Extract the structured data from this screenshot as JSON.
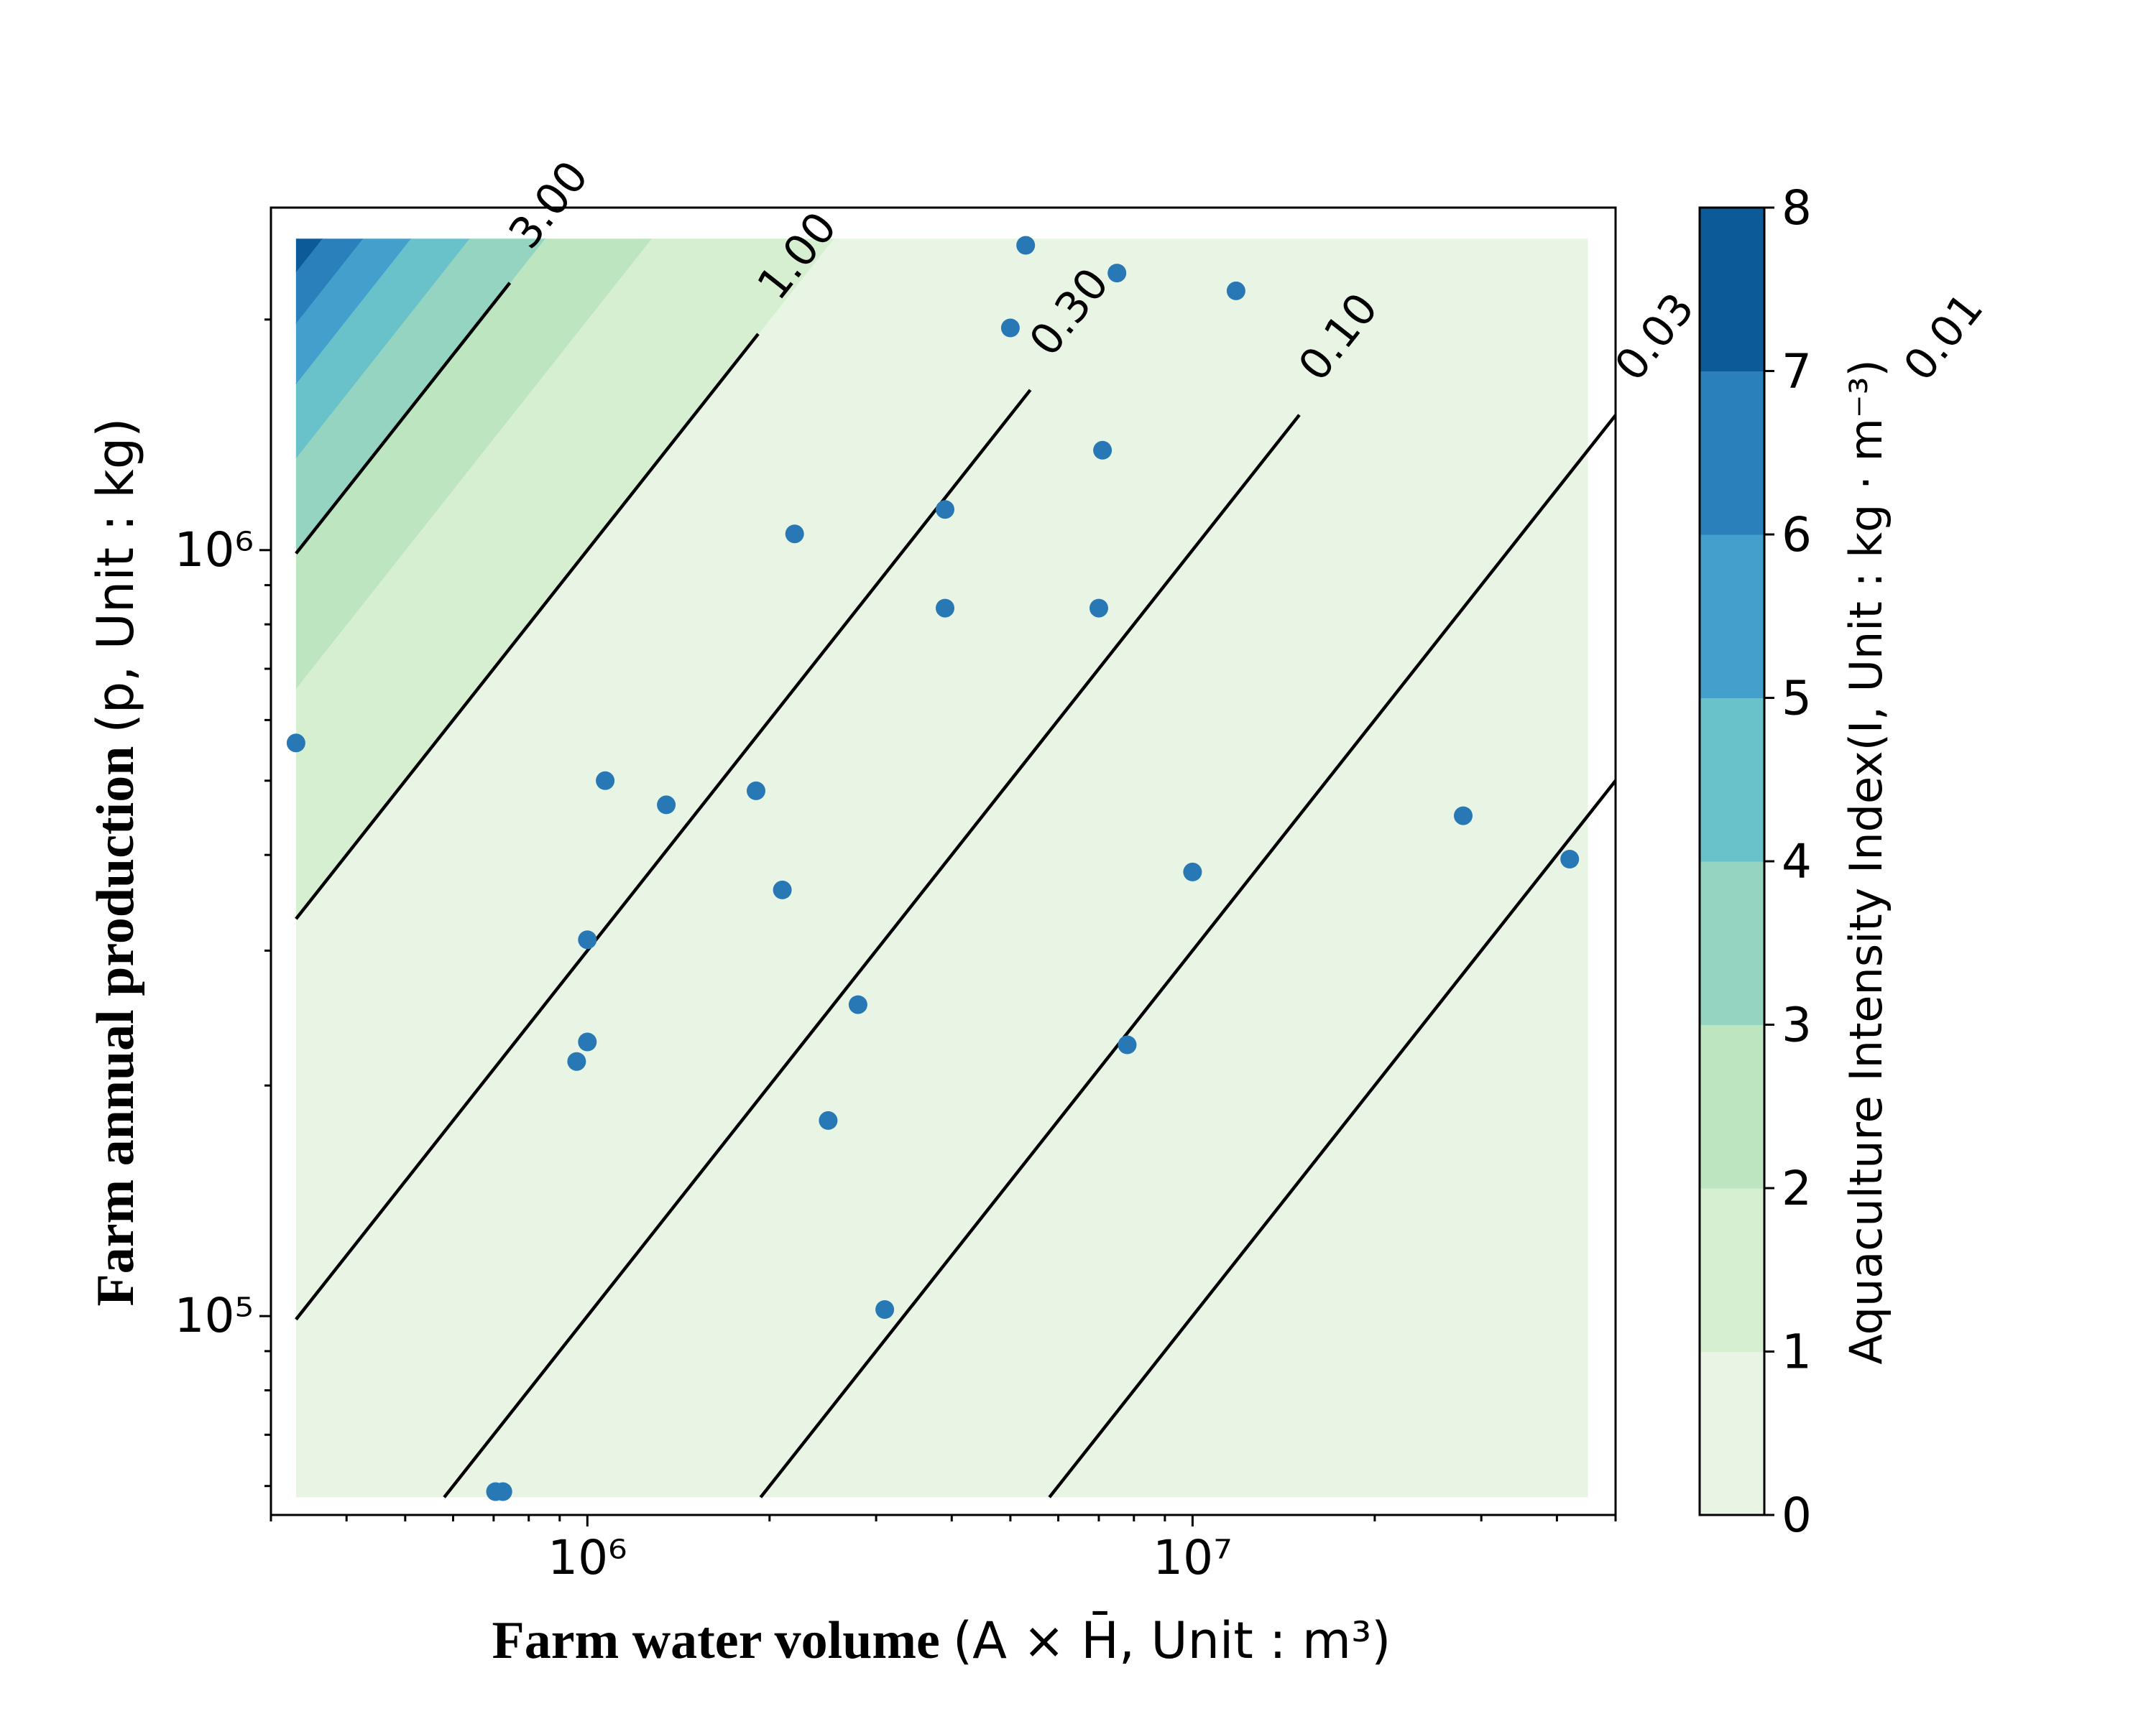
{
  "chart_data": {
    "type": "contour",
    "x_scale": "log",
    "y_scale": "log",
    "xlim": [
      300000,
      50000000
    ],
    "ylim": [
      55000,
      2800000
    ],
    "xlabel_bold": "Farm water volume",
    "xlabel_math": "(A × H̄, Unit : m³)",
    "ylabel_bold": "Farm annual production",
    "ylabel_math": "(p, Unit : kg)",
    "x_ticks": [
      {
        "value": 1000000,
        "label": "10⁶"
      },
      {
        "value": 10000000,
        "label": "10⁷"
      }
    ],
    "y_ticks": [
      {
        "value": 100000,
        "label": "10⁵"
      },
      {
        "value": 1000000,
        "label": "10⁶"
      }
    ],
    "field": {
      "x_range": [
        330000,
        45000000
      ],
      "y_range": [
        58000,
        2550000
      ]
    },
    "filled_levels": [
      0,
      1,
      2,
      3,
      4,
      5,
      6,
      7,
      8
    ],
    "fill_colors": [
      "#e8f5e4",
      "#d6efd1",
      "#bde5c0",
      "#94d4c0",
      "#69c1ca",
      "#439fcb",
      "#2a80bb",
      "#0d5a99"
    ],
    "contour_lines": [
      {
        "level": 3.0,
        "label": "3.00"
      },
      {
        "level": 1.0,
        "label": "1.00"
      },
      {
        "level": 0.3,
        "label": "0.30"
      },
      {
        "level": 0.1,
        "label": "0.10"
      },
      {
        "level": 0.03,
        "label": "0.03"
      },
      {
        "level": 0.01,
        "label": "0.01"
      }
    ],
    "points": [
      {
        "x": 330000,
        "y": 560000
      },
      {
        "x": 1000000,
        "y": 310000
      },
      {
        "x": 1000000,
        "y": 228000
      },
      {
        "x": 960000,
        "y": 215000
      },
      {
        "x": 1070000,
        "y": 500000
      },
      {
        "x": 1350000,
        "y": 465000
      },
      {
        "x": 1900000,
        "y": 485000
      },
      {
        "x": 2200000,
        "y": 1050000
      },
      {
        "x": 2100000,
        "y": 360000
      },
      {
        "x": 2800000,
        "y": 255000
      },
      {
        "x": 2500000,
        "y": 180000
      },
      {
        "x": 3100000,
        "y": 102000
      },
      {
        "x": 3900000,
        "y": 1130000
      },
      {
        "x": 3900000,
        "y": 840000
      },
      {
        "x": 5000000,
        "y": 1950000
      },
      {
        "x": 5300000,
        "y": 2500000
      },
      {
        "x": 7100000,
        "y": 1350000
      },
      {
        "x": 7000000,
        "y": 840000
      },
      {
        "x": 7500000,
        "y": 2300000
      },
      {
        "x": 7800000,
        "y": 226000
      },
      {
        "x": 10000000,
        "y": 380000
      },
      {
        "x": 11800000,
        "y": 2180000
      },
      {
        "x": 28000000,
        "y": 450000
      },
      {
        "x": 42000000,
        "y": 395000
      },
      {
        "x": 705000,
        "y": 59000
      },
      {
        "x": 725000,
        "y": 59000
      }
    ],
    "point_color": "#2878b5",
    "colorbar": {
      "label": "Aquaculture Intensity Index(I, Unit : kg · m⁻³)",
      "ticks": [
        "0",
        "1",
        "2",
        "3",
        "4",
        "5",
        "6",
        "7",
        "8"
      ],
      "range": [
        0,
        8
      ]
    }
  }
}
